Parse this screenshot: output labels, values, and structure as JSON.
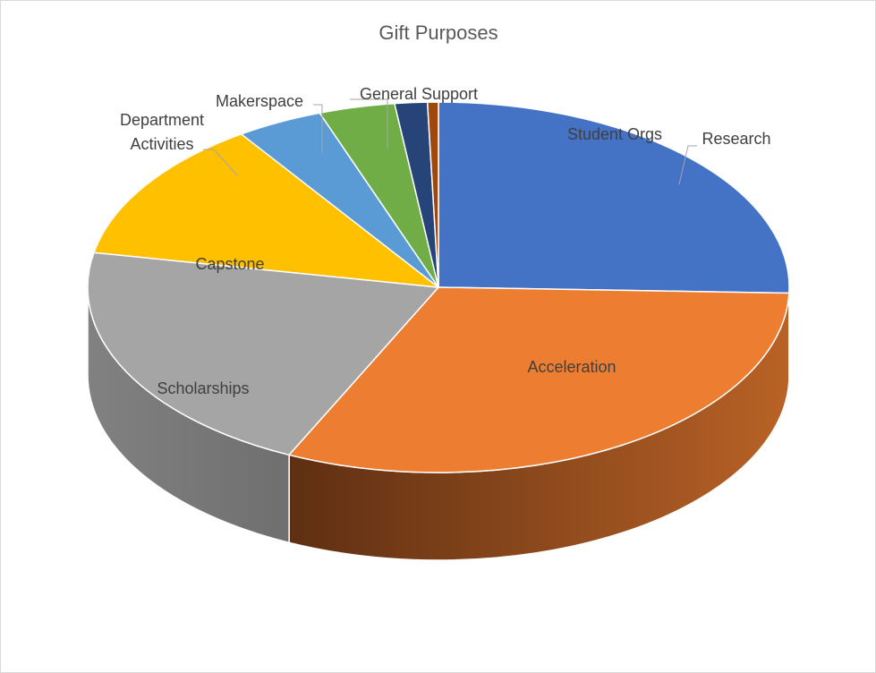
{
  "chart_data": {
    "type": "pie",
    "title": "Gift Purposes",
    "style": "3d",
    "slices": [
      {
        "label": "Research",
        "value": 25.5,
        "color": "#4472C4",
        "side_dark": "#2f4f8a"
      },
      {
        "label": "Acceleration",
        "value": 31.5,
        "color": "#ED7D31",
        "side_dark": "#5e2f12"
      },
      {
        "label": "Scholarships",
        "value": 21.0,
        "color": "#A5A5A5",
        "side_dark": "#6f6f6f"
      },
      {
        "label": "Capstone",
        "value": 12.5,
        "color": "#FFC000",
        "side_dark": "#9a7400"
      },
      {
        "label": "Department Activities",
        "value": 4.0,
        "color": "#5B9BD5",
        "side_dark": "#3a6a98"
      },
      {
        "label": "Makerspace",
        "value": 3.5,
        "color": "#70AD47",
        "side_dark": "#4b7a2e"
      },
      {
        "label": "General Support",
        "value": 1.5,
        "color": "#264478",
        "side_dark": "#182c4f"
      },
      {
        "label": "Student Orgs",
        "value": 0.5,
        "color": "#9E480E",
        "side_dark": "#5e2a08"
      }
    ]
  }
}
